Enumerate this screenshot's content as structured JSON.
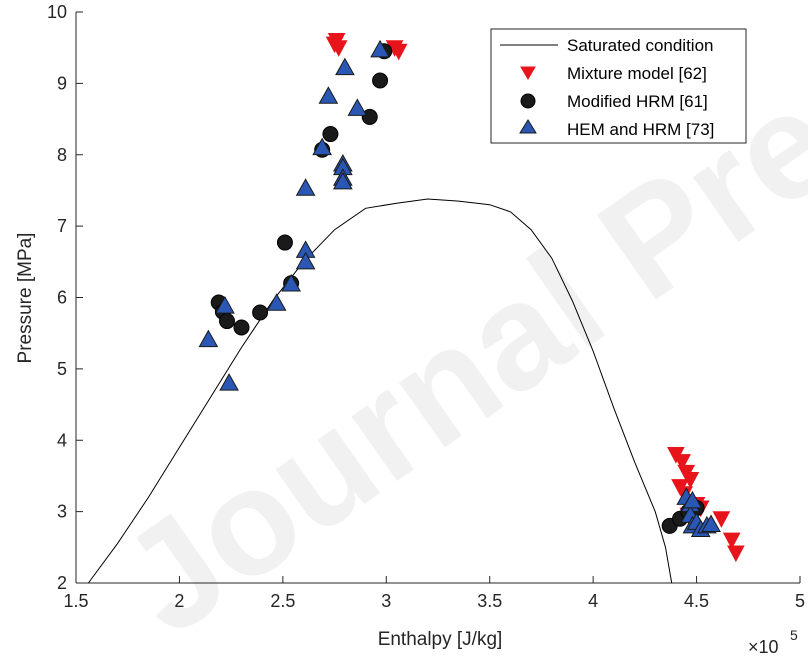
{
  "chart_data": {
    "type": "scatter",
    "watermark": "Journal Pre-proof",
    "xlabel": "Enthalpy [J/kg]",
    "ylabel": "Pressure [MPa]",
    "x_multiplier_label": "×10",
    "x_multiplier_exp": "5",
    "xlim": [
      1.5,
      5
    ],
    "ylim": [
      2,
      10
    ],
    "xticks": [
      "1.5",
      "2",
      "2.5",
      "3",
      "3.5",
      "4",
      "4.5",
      "5"
    ],
    "yticks": [
      "2",
      "3",
      "4",
      "5",
      "6",
      "7",
      "8",
      "9",
      "10"
    ],
    "grid": false,
    "legend_position": "top-right",
    "series": [
      {
        "name": "Saturated condition",
        "kind": "line",
        "color": "#000000",
        "points": [
          [
            1.56,
            2.0
          ],
          [
            1.7,
            2.55
          ],
          [
            1.85,
            3.2
          ],
          [
            2.0,
            3.9
          ],
          [
            2.15,
            4.6
          ],
          [
            2.3,
            5.3
          ],
          [
            2.45,
            5.95
          ],
          [
            2.6,
            6.5
          ],
          [
            2.75,
            6.95
          ],
          [
            2.9,
            7.25
          ],
          [
            3.05,
            7.32
          ],
          [
            3.2,
            7.38
          ],
          [
            3.35,
            7.35
          ],
          [
            3.5,
            7.3
          ],
          [
            3.6,
            7.2
          ],
          [
            3.7,
            6.95
          ],
          [
            3.8,
            6.55
          ],
          [
            3.9,
            5.95
          ],
          [
            4.0,
            5.25
          ],
          [
            4.1,
            4.45
          ],
          [
            4.2,
            3.7
          ],
          [
            4.3,
            3.0
          ],
          [
            4.35,
            2.5
          ],
          [
            4.38,
            2.0
          ]
        ]
      },
      {
        "name": "Mixture model [62]",
        "kind": "marker",
        "marker": "triangle-down",
        "color": "#e8141b",
        "points": [
          [
            2.76,
            9.6
          ],
          [
            2.77,
            9.5
          ],
          [
            2.75,
            9.55
          ],
          [
            3.06,
            9.45
          ],
          [
            3.04,
            9.5
          ],
          [
            4.4,
            3.8
          ],
          [
            4.43,
            3.7
          ],
          [
            4.45,
            3.55
          ],
          [
            4.47,
            3.45
          ],
          [
            4.42,
            3.35
          ],
          [
            4.44,
            3.25
          ],
          [
            4.5,
            3.1
          ],
          [
            4.52,
            3.05
          ],
          [
            4.62,
            2.9
          ],
          [
            4.67,
            2.6
          ],
          [
            4.69,
            2.42
          ],
          [
            4.46,
            2.95
          ]
        ]
      },
      {
        "name": "Modified HRM [61]",
        "kind": "marker",
        "marker": "circle",
        "color": "#1a1a1a",
        "points": [
          [
            2.19,
            5.93
          ],
          [
            2.21,
            5.8
          ],
          [
            2.23,
            5.67
          ],
          [
            2.3,
            5.58
          ],
          [
            2.39,
            5.79
          ],
          [
            2.51,
            6.77
          ],
          [
            2.54,
            6.2
          ],
          [
            2.69,
            8.07
          ],
          [
            2.73,
            8.29
          ],
          [
            2.92,
            8.53
          ],
          [
            2.97,
            9.04
          ],
          [
            2.99,
            9.45
          ],
          [
            4.37,
            2.8
          ],
          [
            4.42,
            2.9
          ],
          [
            4.46,
            3.0
          ],
          [
            4.5,
            3.05
          ]
        ]
      },
      {
        "name": "HEM and HRM [73]",
        "kind": "marker",
        "marker": "triangle-up",
        "color": "#2b57b4",
        "points": [
          [
            2.14,
            5.41
          ],
          [
            2.22,
            5.88
          ],
          [
            2.24,
            4.8
          ],
          [
            2.47,
            5.92
          ],
          [
            2.54,
            6.19
          ],
          [
            2.61,
            6.66
          ],
          [
            2.61,
            6.5
          ],
          [
            2.61,
            7.53
          ],
          [
            2.69,
            8.1
          ],
          [
            2.72,
            8.82
          ],
          [
            2.79,
            7.87
          ],
          [
            2.79,
            7.82
          ],
          [
            2.79,
            7.67
          ],
          [
            2.79,
            7.62
          ],
          [
            2.8,
            9.22
          ],
          [
            2.86,
            8.65
          ],
          [
            2.97,
            9.47
          ],
          [
            4.45,
            3.2
          ],
          [
            4.47,
            3.1
          ],
          [
            4.47,
            2.95
          ],
          [
            4.48,
            2.8
          ],
          [
            4.5,
            2.85
          ],
          [
            4.52,
            2.75
          ],
          [
            4.55,
            2.8
          ],
          [
            4.57,
            2.82
          ],
          [
            4.48,
            3.15
          ]
        ]
      }
    ]
  }
}
